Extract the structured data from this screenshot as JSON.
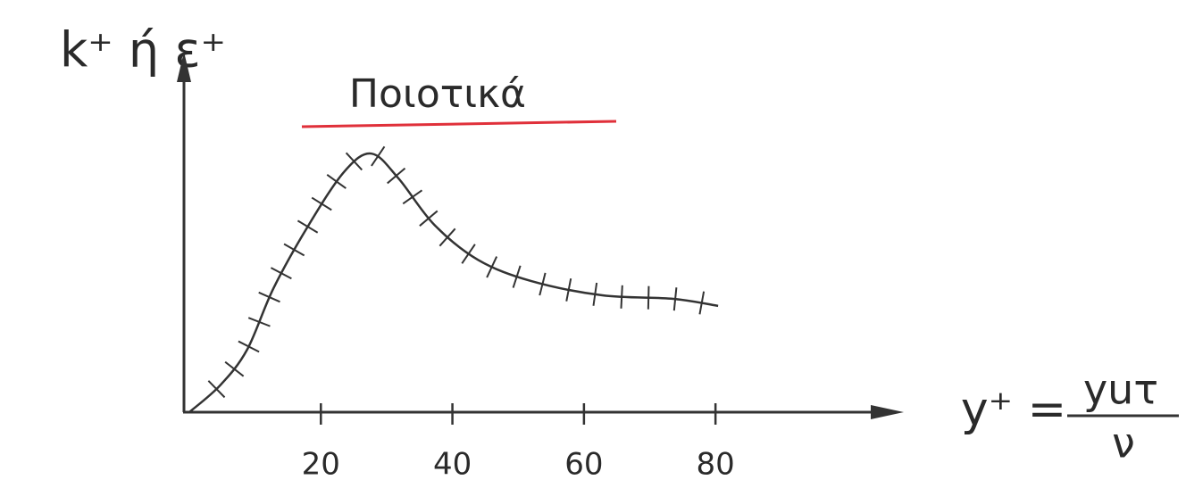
{
  "chart_data": {
    "type": "line",
    "title": "Ποιοτικά",
    "y_label": "k⁺ ή ε⁺",
    "x_label": [
      "y⁺ =",
      "yuτ",
      "ν"
    ],
    "x": [
      0,
      4.7,
      8.8,
      12.8,
      18.2,
      23.6,
      27.7,
      31.8,
      37.2,
      43.9,
      52,
      62.8,
      73.6,
      80.4
    ],
    "series": [
      {
        "color": "#333333",
        "values": [
          0,
          7.6,
          17.7,
          35,
          53,
          68,
          73,
          66,
          53,
          43,
          37,
          33,
          32,
          30
        ]
      }
    ],
    "xlim": [
      0,
      107
    ],
    "xticks": [
      20,
      40,
      60,
      80
    ],
    "ylim": [
      0,
      100
    ],
    "title_underline_color": "#e0303a"
  }
}
